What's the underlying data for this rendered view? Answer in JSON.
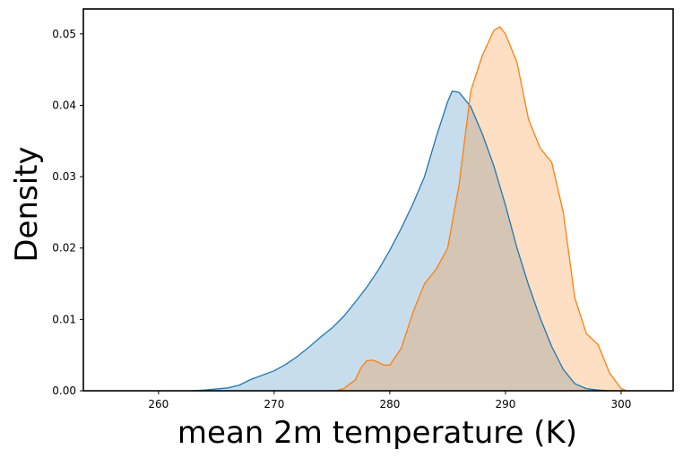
{
  "chart_data": {
    "type": "area",
    "title": "",
    "xlabel": "mean 2m temperature (K)",
    "ylabel": "Density",
    "xlim": [
      253.5,
      304.5
    ],
    "ylim": [
      0,
      0.0535
    ],
    "xticks": [
      260,
      270,
      280,
      290,
      300
    ],
    "yticks": [
      0.0,
      0.01,
      0.02,
      0.03,
      0.04,
      0.05
    ],
    "xtick_labels": [
      "260",
      "270",
      "280",
      "290",
      "300"
    ],
    "ytick_labels": [
      "0.00",
      "0.01",
      "0.02",
      "0.03",
      "0.04",
      "0.05"
    ],
    "grid": false,
    "legend": "none",
    "series": [
      {
        "color": "#1f77b4",
        "fill": "#c6dbee",
        "points": [
          [
            262.9,
            0.0
          ],
          [
            264,
            0.0001
          ],
          [
            266,
            0.0004
          ],
          [
            267,
            0.0008
          ],
          [
            268,
            0.0016
          ],
          [
            269,
            0.0022
          ],
          [
            270,
            0.0028
          ],
          [
            271,
            0.0037
          ],
          [
            272,
            0.0048
          ],
          [
            273,
            0.0061
          ],
          [
            274,
            0.0075
          ],
          [
            275,
            0.0088
          ],
          [
            276,
            0.0104
          ],
          [
            277,
            0.0124
          ],
          [
            278,
            0.0145
          ],
          [
            279,
            0.0169
          ],
          [
            280,
            0.0197
          ],
          [
            281,
            0.0228
          ],
          [
            282,
            0.0262
          ],
          [
            283,
            0.03
          ],
          [
            284,
            0.0355
          ],
          [
            285,
            0.0405
          ],
          [
            285.4,
            0.042
          ],
          [
            286,
            0.0418
          ],
          [
            287,
            0.0398
          ],
          [
            288,
            0.036
          ],
          [
            289,
            0.0315
          ],
          [
            290,
            0.026
          ],
          [
            291,
            0.02
          ],
          [
            292,
            0.0148
          ],
          [
            293,
            0.0102
          ],
          [
            294,
            0.0062
          ],
          [
            295,
            0.003
          ],
          [
            296,
            0.001
          ],
          [
            297,
            0.0003
          ],
          [
            298,
            0.0001
          ],
          [
            298.9,
            0.0
          ]
        ]
      },
      {
        "color": "#ff7f0e",
        "fill": "#fdd8b8",
        "points": [
          [
            275.3,
            0.0
          ],
          [
            276,
            0.0003
          ],
          [
            277,
            0.0015
          ],
          [
            277.5,
            0.0032
          ],
          [
            278,
            0.0042
          ],
          [
            278.5,
            0.0043
          ],
          [
            279,
            0.004
          ],
          [
            279.5,
            0.0036
          ],
          [
            280,
            0.0036
          ],
          [
            281,
            0.006
          ],
          [
            282,
            0.011
          ],
          [
            283,
            0.015
          ],
          [
            284,
            0.017
          ],
          [
            285,
            0.02
          ],
          [
            286,
            0.029
          ],
          [
            287,
            0.042
          ],
          [
            288,
            0.047
          ],
          [
            289,
            0.0505
          ],
          [
            289.5,
            0.051
          ],
          [
            290,
            0.05
          ],
          [
            291,
            0.046
          ],
          [
            292,
            0.038
          ],
          [
            293,
            0.034
          ],
          [
            294,
            0.032
          ],
          [
            295,
            0.025
          ],
          [
            296,
            0.013
          ],
          [
            297,
            0.008
          ],
          [
            298,
            0.0065
          ],
          [
            299,
            0.0025
          ],
          [
            300,
            0.0003
          ],
          [
            300.5,
            0.0
          ]
        ]
      }
    ]
  }
}
